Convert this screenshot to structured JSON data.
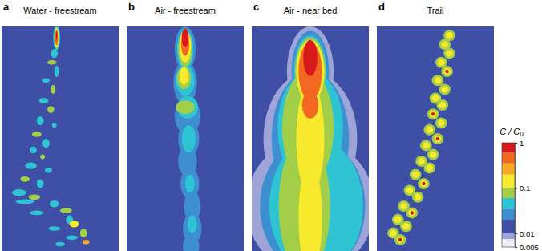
{
  "chart_data": {
    "type": "contour",
    "xlim": [
      0,
      1
    ],
    "ylim": [
      0,
      1
    ],
    "colorbar": {
      "title": "C / C₀",
      "log": true,
      "range": [
        0.005,
        1
      ],
      "ticks": [
        0.005,
        0.01,
        0.1,
        1
      ],
      "levels": [
        0.005,
        0.0075,
        0.01,
        0.02,
        0.035,
        0.06,
        0.1,
        0.2,
        0.35,
        0.6,
        1
      ],
      "colors": [
        "#eeeef8",
        "#9ea3d8",
        "#3f4fa5",
        "#3d8fd0",
        "#2ec4d4",
        "#a3cf48",
        "#f7e92b",
        "#f9a825",
        "#f26722",
        "#d7191c"
      ]
    },
    "panels": [
      {
        "letter": "a",
        "title": "Water - freestream",
        "background": 0.01,
        "blobs": [
          [
            0.47,
            0.05,
            0.03,
            0.055,
            0.05
          ],
          [
            0.47,
            0.05,
            0.02,
            0.045,
            0.15
          ],
          [
            0.47,
            0.05,
            0.012,
            0.035,
            0.5
          ],
          [
            0.47,
            0.04,
            0.006,
            0.02,
            1
          ],
          [
            0.45,
            0.12,
            0.03,
            0.02,
            0.04
          ],
          [
            0.43,
            0.16,
            0.04,
            0.01,
            0.08
          ],
          [
            0.47,
            0.2,
            0.02,
            0.025,
            0.04
          ],
          [
            0.38,
            0.24,
            0.03,
            0.01,
            0.04
          ],
          [
            0.44,
            0.28,
            0.02,
            0.02,
            0.08
          ],
          [
            0.36,
            0.33,
            0.04,
            0.012,
            0.04
          ],
          [
            0.42,
            0.37,
            0.03,
            0.015,
            0.08
          ],
          [
            0.33,
            0.42,
            0.03,
            0.02,
            0.04
          ],
          [
            0.45,
            0.44,
            0.02,
            0.01,
            0.04
          ],
          [
            0.3,
            0.48,
            0.04,
            0.012,
            0.08
          ],
          [
            0.38,
            0.52,
            0.03,
            0.02,
            0.04
          ],
          [
            0.27,
            0.55,
            0.03,
            0.015,
            0.04
          ],
          [
            0.35,
            0.58,
            0.02,
            0.01,
            0.08
          ],
          [
            0.25,
            0.62,
            0.05,
            0.015,
            0.04
          ],
          [
            0.4,
            0.64,
            0.03,
            0.012,
            0.04
          ],
          [
            0.2,
            0.68,
            0.04,
            0.012,
            0.08
          ],
          [
            0.33,
            0.7,
            0.03,
            0.02,
            0.04
          ],
          [
            0.15,
            0.74,
            0.06,
            0.015,
            0.04
          ],
          [
            0.28,
            0.76,
            0.05,
            0.012,
            0.08
          ],
          [
            0.2,
            0.78,
            0.08,
            0.01,
            0.04
          ],
          [
            0.45,
            0.79,
            0.04,
            0.015,
            0.04
          ],
          [
            0.55,
            0.82,
            0.05,
            0.012,
            0.08
          ],
          [
            0.3,
            0.83,
            0.06,
            0.01,
            0.04
          ],
          [
            0.58,
            0.86,
            0.03,
            0.02,
            0.04
          ],
          [
            0.62,
            0.88,
            0.04,
            0.015,
            0.15
          ],
          [
            0.45,
            0.9,
            0.05,
            0.01,
            0.04
          ],
          [
            0.7,
            0.92,
            0.03,
            0.02,
            0.08
          ],
          [
            0.6,
            0.94,
            0.05,
            0.01,
            0.04
          ],
          [
            0.5,
            0.97,
            0.04,
            0.01,
            0.04
          ],
          [
            0.72,
            0.96,
            0.03,
            0.01,
            0.3
          ]
        ]
      },
      {
        "letter": "b",
        "title": "Air - freestream",
        "background": 0.01,
        "blobs": [
          [
            0.5,
            0.1,
            0.09,
            0.1,
            0.025
          ],
          [
            0.5,
            0.25,
            0.1,
            0.1,
            0.025
          ],
          [
            0.52,
            0.4,
            0.11,
            0.08,
            0.025
          ],
          [
            0.53,
            0.5,
            0.09,
            0.08,
            0.025
          ],
          [
            0.52,
            0.6,
            0.08,
            0.07,
            0.025
          ],
          [
            0.54,
            0.7,
            0.08,
            0.07,
            0.025
          ],
          [
            0.56,
            0.8,
            0.07,
            0.07,
            0.025
          ],
          [
            0.56,
            0.9,
            0.08,
            0.07,
            0.025
          ],
          [
            0.55,
            0.98,
            0.07,
            0.05,
            0.025
          ],
          [
            0.5,
            0.1,
            0.07,
            0.09,
            0.04
          ],
          [
            0.5,
            0.24,
            0.08,
            0.07,
            0.04
          ],
          [
            0.52,
            0.36,
            0.09,
            0.05,
            0.04
          ],
          [
            0.53,
            0.5,
            0.06,
            0.06,
            0.04
          ],
          [
            0.54,
            0.7,
            0.04,
            0.04,
            0.04
          ],
          [
            0.56,
            0.88,
            0.04,
            0.04,
            0.04
          ],
          [
            0.5,
            0.1,
            0.06,
            0.08,
            0.08
          ],
          [
            0.49,
            0.23,
            0.06,
            0.05,
            0.08
          ],
          [
            0.5,
            0.36,
            0.08,
            0.03,
            0.08
          ],
          [
            0.5,
            0.09,
            0.05,
            0.07,
            0.15
          ],
          [
            0.49,
            0.22,
            0.04,
            0.04,
            0.15
          ],
          [
            0.5,
            0.08,
            0.035,
            0.05,
            0.4
          ],
          [
            0.5,
            0.05,
            0.03,
            0.04,
            0.8
          ]
        ]
      },
      {
        "letter": "c",
        "title": "Air - near bed",
        "background": 0.01,
        "blobs": [
          [
            0.5,
            0.03,
            0.03,
            0.06,
            0.025
          ],
          [
            0.5,
            0.2,
            0.2,
            0.2,
            0.008
          ],
          [
            0.5,
            0.5,
            0.4,
            0.3,
            0.008
          ],
          [
            0.5,
            0.8,
            0.55,
            0.3,
            0.008
          ],
          [
            0.5,
            0.2,
            0.16,
            0.18,
            0.025
          ],
          [
            0.5,
            0.5,
            0.33,
            0.3,
            0.025
          ],
          [
            0.52,
            0.8,
            0.45,
            0.3,
            0.025
          ],
          [
            0.5,
            0.2,
            0.14,
            0.16,
            0.04
          ],
          [
            0.5,
            0.45,
            0.28,
            0.25,
            0.04
          ],
          [
            0.55,
            0.8,
            0.4,
            0.3,
            0.04
          ],
          [
            0.5,
            0.2,
            0.13,
            0.15,
            0.07
          ],
          [
            0.48,
            0.45,
            0.22,
            0.25,
            0.07
          ],
          [
            0.45,
            0.8,
            0.22,
            0.3,
            0.07
          ],
          [
            0.5,
            0.2,
            0.12,
            0.14,
            0.15
          ],
          [
            0.5,
            0.5,
            0.12,
            0.25,
            0.15
          ],
          [
            0.5,
            0.85,
            0.1,
            0.25,
            0.15
          ],
          [
            0.5,
            0.2,
            0.1,
            0.13,
            0.4
          ],
          [
            0.5,
            0.35,
            0.07,
            0.06,
            0.4
          ],
          [
            0.5,
            0.14,
            0.06,
            0.08,
            0.8
          ]
        ]
      },
      {
        "letter": "d",
        "title": "Trail",
        "background": 0.01,
        "blobs": [
          [
            0.62,
            0.04,
            0.05,
            0.025,
            0.06
          ],
          [
            0.58,
            0.08,
            0.05,
            0.025,
            0.06
          ],
          [
            0.62,
            0.12,
            0.05,
            0.025,
            0.06
          ],
          [
            0.55,
            0.16,
            0.05,
            0.025,
            0.06
          ],
          [
            0.6,
            0.2,
            0.05,
            0.025,
            0.06
          ],
          [
            0.52,
            0.24,
            0.05,
            0.025,
            0.06
          ],
          [
            0.58,
            0.28,
            0.05,
            0.025,
            0.06
          ],
          [
            0.5,
            0.32,
            0.05,
            0.025,
            0.06
          ],
          [
            0.56,
            0.35,
            0.05,
            0.025,
            0.06
          ],
          [
            0.48,
            0.39,
            0.05,
            0.025,
            0.06
          ],
          [
            0.55,
            0.43,
            0.05,
            0.025,
            0.06
          ],
          [
            0.45,
            0.46,
            0.05,
            0.025,
            0.06
          ],
          [
            0.52,
            0.5,
            0.05,
            0.025,
            0.06
          ],
          [
            0.42,
            0.53,
            0.05,
            0.025,
            0.06
          ],
          [
            0.48,
            0.57,
            0.05,
            0.025,
            0.06
          ],
          [
            0.38,
            0.6,
            0.05,
            0.025,
            0.06
          ],
          [
            0.45,
            0.63,
            0.05,
            0.025,
            0.06
          ],
          [
            0.33,
            0.66,
            0.05,
            0.025,
            0.06
          ],
          [
            0.4,
            0.7,
            0.05,
            0.025,
            0.06
          ],
          [
            0.28,
            0.73,
            0.05,
            0.025,
            0.06
          ],
          [
            0.35,
            0.76,
            0.05,
            0.025,
            0.06
          ],
          [
            0.23,
            0.8,
            0.05,
            0.025,
            0.06
          ],
          [
            0.3,
            0.83,
            0.05,
            0.025,
            0.06
          ],
          [
            0.18,
            0.86,
            0.05,
            0.025,
            0.06
          ],
          [
            0.25,
            0.89,
            0.05,
            0.025,
            0.06
          ],
          [
            0.14,
            0.92,
            0.05,
            0.025,
            0.06
          ],
          [
            0.2,
            0.95,
            0.05,
            0.025,
            0.06
          ],
          [
            0.62,
            0.04,
            0.03,
            0.015,
            0.12
          ],
          [
            0.58,
            0.08,
            0.03,
            0.015,
            0.12
          ],
          [
            0.62,
            0.12,
            0.03,
            0.015,
            0.12
          ],
          [
            0.55,
            0.16,
            0.03,
            0.015,
            0.12
          ],
          [
            0.6,
            0.2,
            0.03,
            0.015,
            0.12
          ],
          [
            0.52,
            0.24,
            0.03,
            0.015,
            0.12
          ],
          [
            0.58,
            0.28,
            0.03,
            0.015,
            0.12
          ],
          [
            0.5,
            0.32,
            0.03,
            0.015,
            0.12
          ],
          [
            0.56,
            0.35,
            0.03,
            0.015,
            0.12
          ],
          [
            0.48,
            0.39,
            0.03,
            0.015,
            0.12
          ],
          [
            0.55,
            0.43,
            0.03,
            0.015,
            0.12
          ],
          [
            0.45,
            0.46,
            0.03,
            0.015,
            0.12
          ],
          [
            0.52,
            0.5,
            0.03,
            0.015,
            0.12
          ],
          [
            0.42,
            0.53,
            0.03,
            0.015,
            0.12
          ],
          [
            0.48,
            0.57,
            0.03,
            0.015,
            0.12
          ],
          [
            0.38,
            0.6,
            0.03,
            0.015,
            0.12
          ],
          [
            0.45,
            0.63,
            0.03,
            0.015,
            0.12
          ],
          [
            0.33,
            0.66,
            0.03,
            0.015,
            0.12
          ],
          [
            0.4,
            0.7,
            0.03,
            0.015,
            0.12
          ],
          [
            0.28,
            0.73,
            0.03,
            0.015,
            0.12
          ],
          [
            0.35,
            0.76,
            0.03,
            0.015,
            0.12
          ],
          [
            0.23,
            0.8,
            0.03,
            0.015,
            0.12
          ],
          [
            0.3,
            0.83,
            0.03,
            0.015,
            0.12
          ],
          [
            0.18,
            0.86,
            0.03,
            0.015,
            0.12
          ],
          [
            0.25,
            0.89,
            0.03,
            0.015,
            0.12
          ],
          [
            0.14,
            0.92,
            0.03,
            0.015,
            0.12
          ],
          [
            0.2,
            0.95,
            0.03,
            0.015,
            0.12
          ],
          [
            0.6,
            0.2,
            0.015,
            0.008,
            0.8
          ],
          [
            0.48,
            0.39,
            0.015,
            0.008,
            0.8
          ],
          [
            0.52,
            0.5,
            0.015,
            0.008,
            0.8
          ],
          [
            0.4,
            0.7,
            0.015,
            0.008,
            0.8
          ],
          [
            0.3,
            0.83,
            0.015,
            0.008,
            0.8
          ],
          [
            0.2,
            0.95,
            0.015,
            0.008,
            0.8
          ]
        ]
      }
    ]
  }
}
